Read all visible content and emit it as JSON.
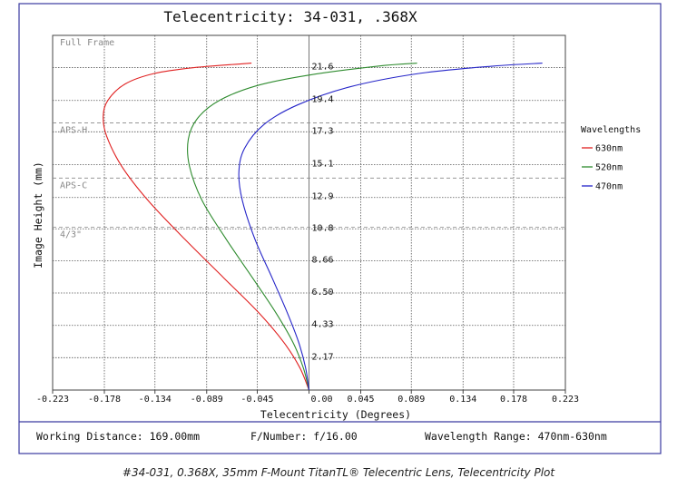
{
  "chart_data": {
    "type": "line",
    "title": "Telecentricity: 34-031, .368X",
    "xlabel": "Telecentricity (Degrees)",
    "ylabel": "Image Height (mm)",
    "xlim": [
      -0.223,
      0.223
    ],
    "ylim": [
      0,
      21.6
    ],
    "x_ticks": [
      -0.223,
      -0.178,
      -0.134,
      -0.089,
      -0.045,
      0.0,
      0.045,
      0.089,
      0.134,
      0.178,
      0.223
    ],
    "x_tick_labels": [
      "-0.223",
      "-0.178",
      "-0.134",
      "-0.089",
      "-0.045",
      "0.00",
      "0.045",
      "0.089",
      "0.134",
      "0.178",
      "0.223"
    ],
    "y_ticks": [
      2.17,
      4.33,
      6.5,
      8.66,
      10.8,
      12.9,
      15.1,
      17.3,
      19.4,
      21.6
    ],
    "y_tick_labels": [
      "2.17",
      "4.33",
      "6.50",
      "8.66",
      "10.8",
      "12.9",
      "15.1",
      "17.3",
      "19.4",
      "21.6"
    ],
    "grid": true,
    "legend": {
      "title": "Wavelengths",
      "placement": "right"
    },
    "sensor_lines": [
      {
        "label": "Full Frame",
        "y": 21.6
      },
      {
        "label": "APS-H",
        "y": 17.9
      },
      {
        "label": "APS-C",
        "y": 14.2
      },
      {
        "label": "4/3\"",
        "y": 10.9
      }
    ],
    "series": [
      {
        "name": "630nm",
        "color": "#e02020",
        "points": [
          [
            0,
            0
          ],
          [
            -0.008,
            1.5
          ],
          [
            -0.022,
            3.2
          ],
          [
            -0.044,
            5.2
          ],
          [
            -0.074,
            7.5
          ],
          [
            -0.108,
            10.1
          ],
          [
            -0.14,
            12.7
          ],
          [
            -0.163,
            15.0
          ],
          [
            -0.176,
            17.0
          ],
          [
            -0.179,
            18.3
          ],
          [
            -0.175,
            19.4
          ],
          [
            -0.16,
            20.5
          ],
          [
            -0.135,
            21.2
          ],
          [
            -0.1,
            21.6
          ],
          [
            -0.05,
            21.9
          ]
        ]
      },
      {
        "name": "520nm",
        "color": "#2e8b2e",
        "points": [
          [
            0,
            0
          ],
          [
            -0.005,
            1.5
          ],
          [
            -0.014,
            3.2
          ],
          [
            -0.029,
            5.2
          ],
          [
            -0.049,
            7.5
          ],
          [
            -0.072,
            10.1
          ],
          [
            -0.093,
            12.7
          ],
          [
            -0.104,
            15.0
          ],
          [
            -0.105,
            16.8
          ],
          [
            -0.097,
            18.2
          ],
          [
            -0.078,
            19.4
          ],
          [
            -0.045,
            20.4
          ],
          [
            0.0,
            21.1
          ],
          [
            0.06,
            21.7
          ],
          [
            0.094,
            21.9
          ]
        ]
      },
      {
        "name": "470nm",
        "color": "#2424c8",
        "points": [
          [
            0,
            0
          ],
          [
            -0.003,
            1.5
          ],
          [
            -0.009,
            3.2
          ],
          [
            -0.019,
            5.2
          ],
          [
            -0.032,
            7.5
          ],
          [
            -0.047,
            10.1
          ],
          [
            -0.058,
            12.7
          ],
          [
            -0.061,
            14.6
          ],
          [
            -0.056,
            16.2
          ],
          [
            -0.039,
            17.8
          ],
          [
            -0.01,
            19.1
          ],
          [
            0.035,
            20.3
          ],
          [
            0.095,
            21.2
          ],
          [
            0.16,
            21.7
          ],
          [
            0.203,
            21.9
          ]
        ]
      }
    ]
  },
  "footer": {
    "working_distance": "Working Distance: 169.00mm",
    "f_number": "F/Number: f/16.00",
    "wavelength_range": "Wavelength Range: 470nm-630nm"
  },
  "caption": "#34-031, 0.368X, 35mm F-Mount TitanTL® Telecentric Lens, Telecentricity Plot"
}
